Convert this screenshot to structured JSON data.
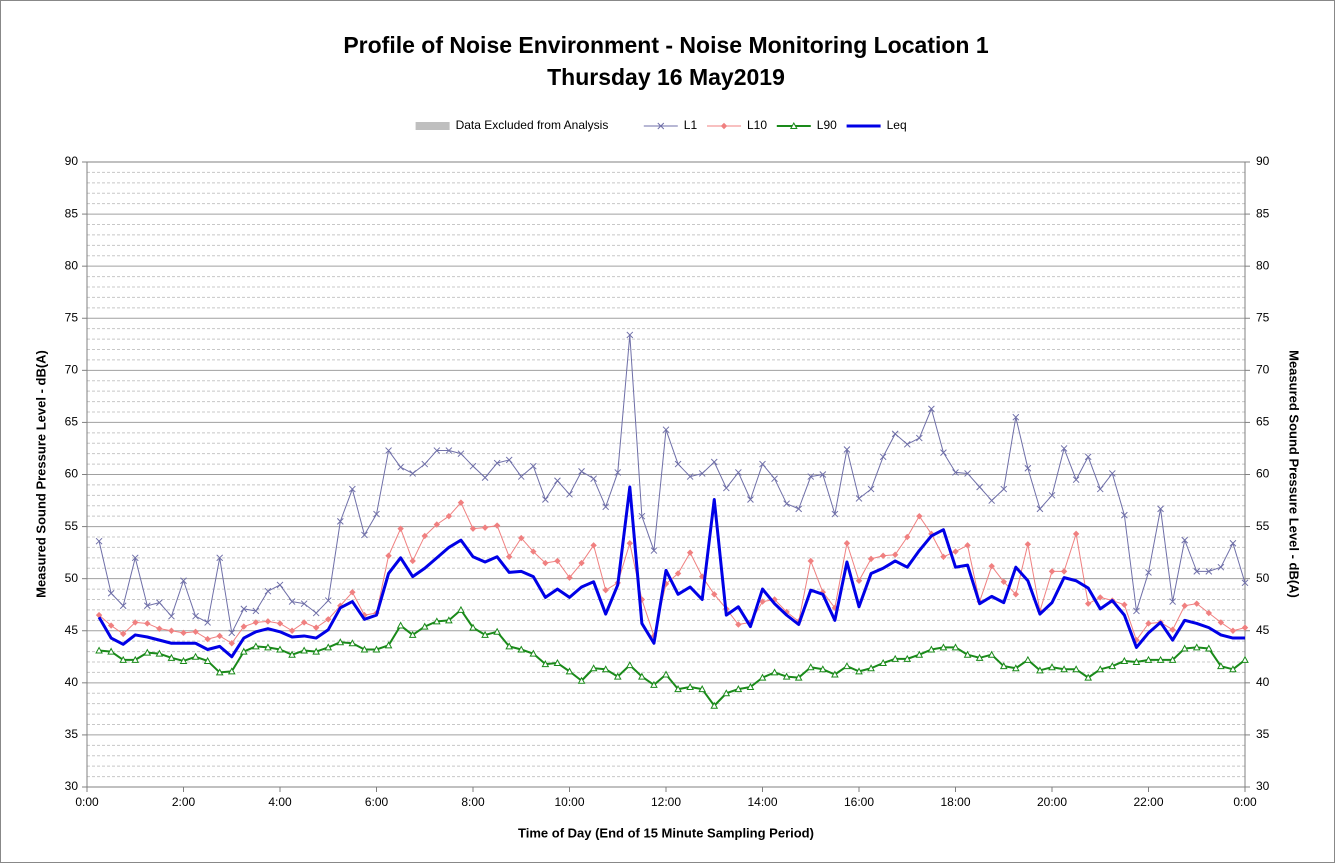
{
  "chart_data": {
    "type": "line",
    "title": "Profile of Noise Environment - Noise Monitoring Location 1",
    "subtitle": "Thursday 16 May2019",
    "xlabel": "Time of Day (End of 15 Minute Sampling Period)",
    "ylabel": "Measured Sound Pressure Level - dB(A)",
    "y2label": "Measured Sound Pressure Level - dB(A)",
    "xlim": [
      0,
      24
    ],
    "xticks": [
      {
        "value": 0,
        "label": "0:00"
      },
      {
        "value": 2,
        "label": "2:00"
      },
      {
        "value": 4,
        "label": "4:00"
      },
      {
        "value": 6,
        "label": "6:00"
      },
      {
        "value": 8,
        "label": "8:00"
      },
      {
        "value": 10,
        "label": "10:00"
      },
      {
        "value": 12,
        "label": "12:00"
      },
      {
        "value": 14,
        "label": "14:00"
      },
      {
        "value": 16,
        "label": "16:00"
      },
      {
        "value": 18,
        "label": "18:00"
      },
      {
        "value": 20,
        "label": "20:00"
      },
      {
        "value": 22,
        "label": "22:00"
      },
      {
        "value": 24,
        "label": "0:00"
      }
    ],
    "ylim": [
      30,
      90
    ],
    "yticks": [
      30,
      35,
      40,
      45,
      50,
      55,
      60,
      65,
      70,
      75,
      80,
      85,
      90
    ],
    "y2lim": [
      30,
      90
    ],
    "y2ticks": [
      30,
      35,
      40,
      45,
      50,
      55,
      60,
      65,
      70,
      75,
      80,
      85,
      90
    ],
    "yminorticks": [
      31,
      32,
      33,
      34,
      36,
      37,
      38,
      39,
      41,
      42,
      43,
      44,
      46,
      47,
      48,
      49,
      51,
      52,
      53,
      54,
      56,
      57,
      58,
      59,
      61,
      62,
      63,
      64,
      66,
      67,
      68,
      69,
      71,
      72,
      73,
      74,
      76,
      77,
      78,
      79,
      81,
      82,
      83,
      84,
      86,
      87,
      88,
      89
    ],
    "grid": true,
    "legend": "top",
    "x": [
      0.25,
      0.5,
      0.75,
      1,
      1.25,
      1.5,
      1.75,
      2,
      2.25,
      2.5,
      2.75,
      3,
      3.25,
      3.5,
      3.75,
      4,
      4.25,
      4.5,
      4.75,
      5,
      5.25,
      5.5,
      5.75,
      6,
      6.25,
      6.5,
      6.75,
      7,
      7.25,
      7.5,
      7.75,
      8,
      8.25,
      8.5,
      8.75,
      9,
      9.25,
      9.5,
      9.75,
      10,
      10.25,
      10.5,
      10.75,
      11,
      11.25,
      11.5,
      11.75,
      12,
      12.25,
      12.5,
      12.75,
      13,
      13.25,
      13.5,
      13.75,
      14,
      14.25,
      14.5,
      14.75,
      15,
      15.25,
      15.5,
      15.75,
      16,
      16.25,
      16.5,
      16.75,
      17,
      17.25,
      17.5,
      17.75,
      18,
      18.25,
      18.5,
      18.75,
      19,
      19.25,
      19.5,
      19.75,
      20,
      20.25,
      20.5,
      20.75,
      21,
      21.25,
      21.5,
      21.75,
      22,
      22.25,
      22.5,
      22.75,
      23,
      23.25,
      23.5,
      23.75,
      24
    ],
    "series": [
      {
        "name": "Data Excluded from Analysis",
        "color": "#bfbfbf",
        "marker": "band",
        "width": 0,
        "values": [
          null,
          null,
          null,
          null,
          null,
          null,
          null,
          null,
          null,
          null,
          null,
          null,
          null,
          null,
          null,
          null,
          null,
          null,
          null,
          null,
          null,
          null,
          null,
          null,
          null,
          null,
          null,
          null,
          null,
          null,
          null,
          null,
          null,
          null,
          null,
          null,
          null,
          null,
          null,
          null,
          null,
          null,
          null,
          null,
          null,
          null,
          null,
          null,
          null,
          null,
          null,
          null,
          null,
          null,
          null,
          null,
          null,
          null,
          null,
          null,
          null,
          null,
          null,
          null,
          null,
          null,
          null,
          null,
          null,
          null,
          null,
          null,
          null,
          null,
          null,
          null,
          null,
          null,
          null,
          null,
          null,
          null,
          null,
          null,
          null,
          null,
          null,
          null,
          null,
          null,
          null,
          null,
          null,
          null,
          null,
          null
        ]
      },
      {
        "name": "L1",
        "color": "#6f6fa8",
        "marker": "x",
        "width": 1,
        "values": [
          53.6,
          48.6,
          47.4,
          52.0,
          47.4,
          47.7,
          46.4,
          49.8,
          46.4,
          45.8,
          52.0,
          44.8,
          47.1,
          46.9,
          48.8,
          49.4,
          47.8,
          47.6,
          46.7,
          47.9,
          55.5,
          58.6,
          54.2,
          56.2,
          62.3,
          60.7,
          60.1,
          61.0,
          62.3,
          62.3,
          62.0,
          60.8,
          59.7,
          61.1,
          61.4,
          59.8,
          60.8,
          57.6,
          59.4,
          58.1,
          60.3,
          59.6,
          56.9,
          60.2,
          73.4,
          56.0,
          52.7,
          64.3,
          61.0,
          59.8,
          60.1,
          61.2,
          58.7,
          60.2,
          57.6,
          61.0,
          59.6,
          57.2,
          56.7,
          59.8,
          60.0,
          56.2,
          62.4,
          57.7,
          58.6,
          61.7,
          63.9,
          62.9,
          63.5,
          66.3,
          62.1,
          60.2,
          60.1,
          58.8,
          57.5,
          58.6,
          65.5,
          60.6,
          56.7,
          58.0,
          62.5,
          59.5,
          61.7,
          58.6,
          60.1,
          56.1,
          46.9,
          50.6,
          56.7,
          47.8,
          53.7,
          50.7,
          50.7,
          51.1,
          53.4,
          49.6
        ]
      },
      {
        "name": "L10",
        "color": "#f08080",
        "marker": "diamond",
        "width": 1,
        "values": [
          46.5,
          45.5,
          44.7,
          45.8,
          45.7,
          45.2,
          45.0,
          44.8,
          44.9,
          44.2,
          44.5,
          43.8,
          45.4,
          45.8,
          45.9,
          45.7,
          45.0,
          45.8,
          45.3,
          46.1,
          47.4,
          48.7,
          46.5,
          46.7,
          52.2,
          54.8,
          51.7,
          54.1,
          55.2,
          56.0,
          57.3,
          54.8,
          54.9,
          55.1,
          52.1,
          53.9,
          52.6,
          51.5,
          51.7,
          50.1,
          51.5,
          53.2,
          48.9,
          49.6,
          53.4,
          48.0,
          44.5,
          49.5,
          50.5,
          52.5,
          50.2,
          48.5,
          47.1,
          45.6,
          45.8,
          47.8,
          48.0,
          46.8,
          45.9,
          51.7,
          48.7,
          47.2,
          53.4,
          49.8,
          51.9,
          52.2,
          52.3,
          54.0,
          56.0,
          54.3,
          52.1,
          52.6,
          53.2,
          47.8,
          51.2,
          49.7,
          48.5,
          53.3,
          46.9,
          50.7,
          50.7,
          54.3,
          47.6,
          48.2,
          47.9,
          47.5,
          44.1,
          45.7,
          45.8,
          45.1,
          47.4,
          47.6,
          46.7,
          45.8,
          45.0,
          45.3
        ]
      },
      {
        "name": "L90",
        "color": "#1a8a1a",
        "marker": "triangle",
        "width": 2,
        "values": [
          43.1,
          43.0,
          42.2,
          42.2,
          42.9,
          42.8,
          42.4,
          42.1,
          42.5,
          42.1,
          41.0,
          41.1,
          43.0,
          43.5,
          43.4,
          43.2,
          42.7,
          43.1,
          43.0,
          43.4,
          43.9,
          43.8,
          43.2,
          43.2,
          43.6,
          45.5,
          44.6,
          45.4,
          45.9,
          46.0,
          47.0,
          45.3,
          44.6,
          44.9,
          43.5,
          43.2,
          42.8,
          41.8,
          41.9,
          41.1,
          40.2,
          41.4,
          41.3,
          40.6,
          41.7,
          40.6,
          39.8,
          40.8,
          39.4,
          39.6,
          39.4,
          37.8,
          39.0,
          39.4,
          39.6,
          40.5,
          41.0,
          40.6,
          40.5,
          41.5,
          41.3,
          40.8,
          41.6,
          41.1,
          41.4,
          41.9,
          42.3,
          42.3,
          42.7,
          43.2,
          43.4,
          43.4,
          42.7,
          42.4,
          42.7,
          41.6,
          41.4,
          42.2,
          41.2,
          41.5,
          41.3,
          41.3,
          40.5,
          41.3,
          41.6,
          42.1,
          42.0,
          42.2,
          42.2,
          42.2,
          43.3,
          43.4,
          43.3,
          41.6,
          41.3,
          42.2
        ]
      },
      {
        "name": "Leq",
        "color": "#0000e6",
        "marker": "none",
        "width": 3,
        "values": [
          46.3,
          44.3,
          43.7,
          44.6,
          44.4,
          44.1,
          43.8,
          43.8,
          43.8,
          43.2,
          43.5,
          42.5,
          44.3,
          44.9,
          45.2,
          44.9,
          44.4,
          44.5,
          44.3,
          45.1,
          47.2,
          47.8,
          46.1,
          46.5,
          50.5,
          52.0,
          50.2,
          51.0,
          52.0,
          53.0,
          53.7,
          52.1,
          51.6,
          52.1,
          50.6,
          50.7,
          50.2,
          48.2,
          49.0,
          48.2,
          49.2,
          49.7,
          46.6,
          49.4,
          58.8,
          45.7,
          43.8,
          50.8,
          48.5,
          49.2,
          48.0,
          57.6,
          46.5,
          47.3,
          45.4,
          49.0,
          47.6,
          46.5,
          45.6,
          48.9,
          48.5,
          46.0,
          51.6,
          47.3,
          50.5,
          51.0,
          51.7,
          51.1,
          52.7,
          54.1,
          54.7,
          51.1,
          51.3,
          47.6,
          48.3,
          47.7,
          51.1,
          49.8,
          46.6,
          47.7,
          50.1,
          49.8,
          49.1,
          47.1,
          47.9,
          46.5,
          43.4,
          44.8,
          45.8,
          44.1,
          46.0,
          45.7,
          45.3,
          44.6,
          44.3,
          44.3
        ]
      }
    ]
  }
}
